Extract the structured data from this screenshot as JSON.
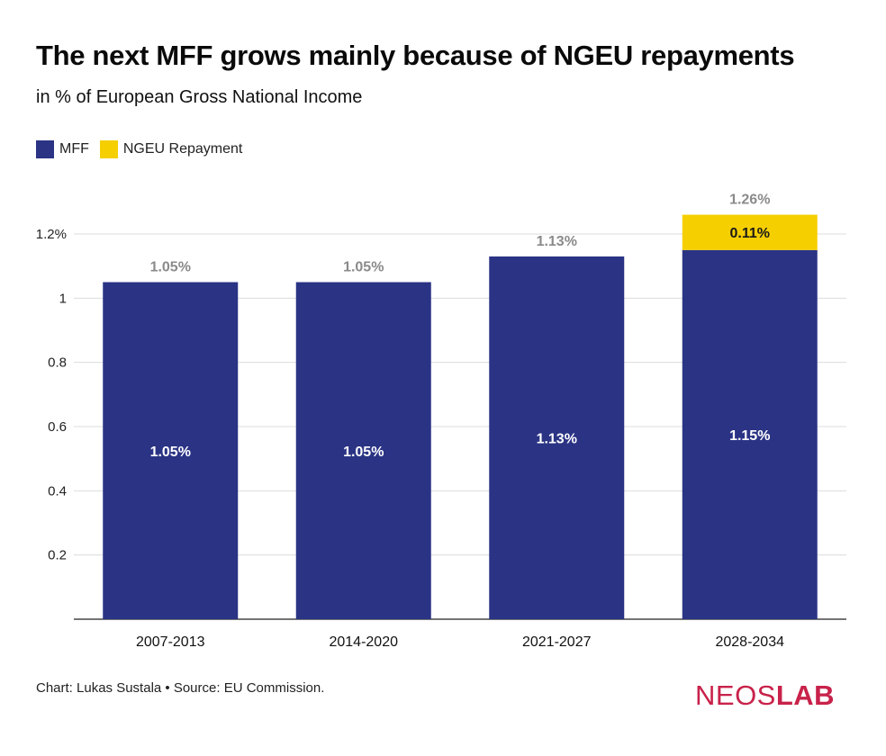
{
  "header": {
    "title": "The next MFF grows mainly because of NGEU repayments",
    "subtitle": "in % of European Gross National Income"
  },
  "legend": [
    {
      "label": "MFF",
      "color": "#2a3384"
    },
    {
      "label": "NGEU Repayment",
      "color": "#f5cf00"
    }
  ],
  "chart_data": {
    "type": "bar",
    "stacked": true,
    "title": "The next MFF grows mainly because of NGEU repayments",
    "subtitle": "in % of European Gross National Income",
    "categories": [
      "2007-2013",
      "2014-2020",
      "2021-2027",
      "2028-2034"
    ],
    "series": [
      {
        "name": "MFF",
        "color": "#2a3384",
        "values": [
          1.05,
          1.05,
          1.13,
          1.15
        ],
        "labels": [
          "1.05%",
          "1.05%",
          "1.13%",
          "1.15%"
        ]
      },
      {
        "name": "NGEU Repayment",
        "color": "#f5cf00",
        "values": [
          0,
          0,
          0,
          0.11
        ],
        "labels": [
          "",
          "",
          "",
          "0.11%"
        ]
      }
    ],
    "totals": [
      1.05,
      1.05,
      1.13,
      1.26
    ],
    "total_labels": [
      "1.05%",
      "1.05%",
      "1.13%",
      "1.26%"
    ],
    "yticks": [
      0.2,
      0.4,
      0.6,
      0.8,
      1,
      1.2
    ],
    "ytick_labels": [
      "0.2",
      "0.4",
      "0.6",
      "0.8",
      "1",
      "1.2%"
    ],
    "ylim": [
      0,
      1.2
    ],
    "grid": true,
    "legend_position": "top-left"
  },
  "footer": {
    "credit": "Chart: Lukas Sustala  • Source: EU Commission."
  },
  "logo": {
    "text_a": "NEOS",
    "text_b": "LAB",
    "color": "#c8224a"
  }
}
